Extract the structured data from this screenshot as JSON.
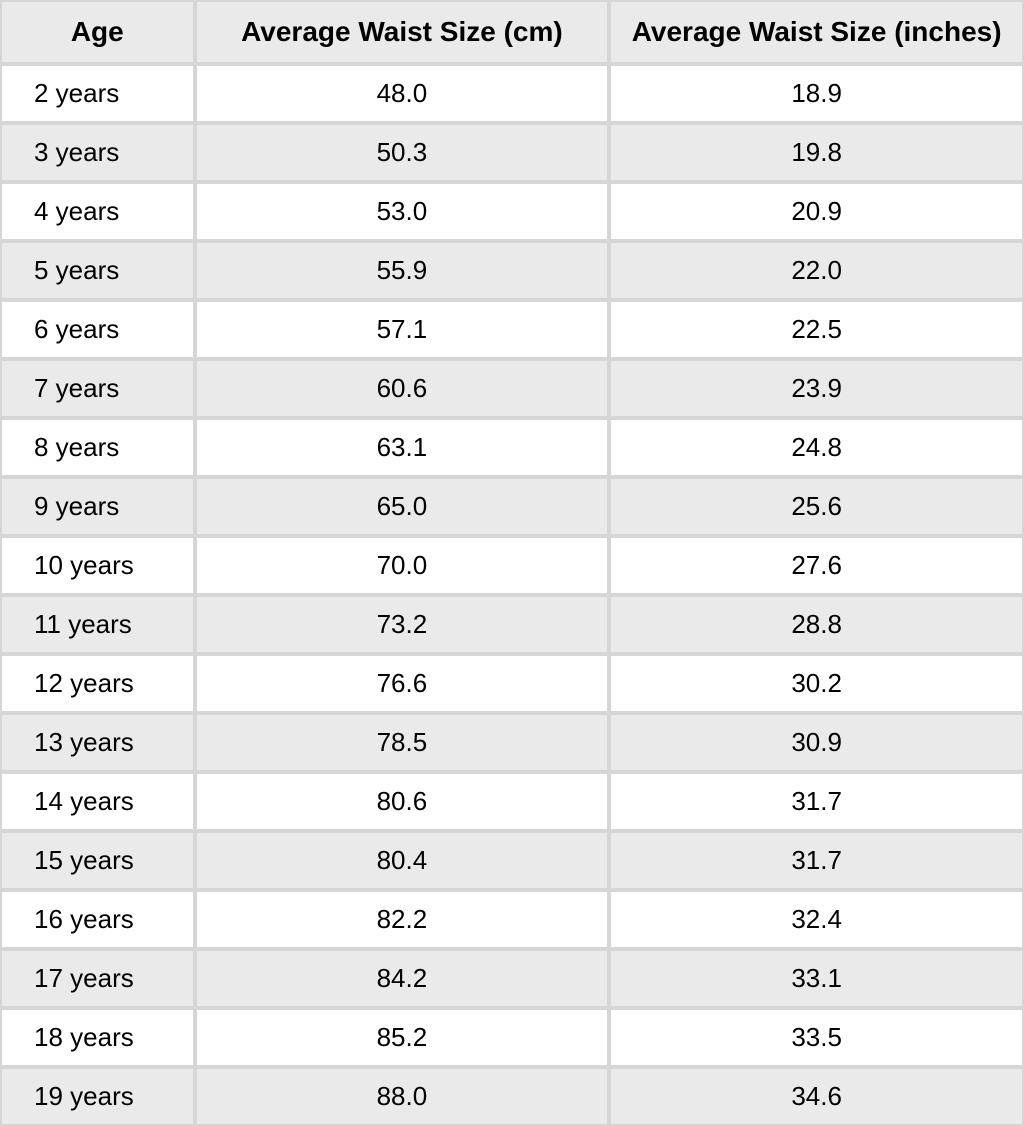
{
  "table": {
    "type": "table",
    "background_color": "#ffffff",
    "stripe_colors": [
      "#ffffff",
      "#eaeaea"
    ],
    "header_bg_color": "#eaeaea",
    "border_color": "#d6d6d6",
    "text_color": "#000000",
    "header_fontsize": 28,
    "cell_fontsize": 26,
    "columns": [
      {
        "key": "age",
        "label": "Age",
        "align": "left",
        "width_pct": 19
      },
      {
        "key": "cm",
        "label": "Average Waist Size (cm)",
        "align": "center",
        "width_pct": 40.5
      },
      {
        "key": "inches",
        "label": "Average Waist Size (inches)",
        "align": "center",
        "width_pct": 40.5
      }
    ],
    "rows": [
      {
        "age": "2 years",
        "cm": "48.0",
        "inches": "18.9"
      },
      {
        "age": "3 years",
        "cm": "50.3",
        "inches": "19.8"
      },
      {
        "age": "4 years",
        "cm": "53.0",
        "inches": "20.9"
      },
      {
        "age": "5 years",
        "cm": "55.9",
        "inches": "22.0"
      },
      {
        "age": "6 years",
        "cm": "57.1",
        "inches": "22.5"
      },
      {
        "age": "7 years",
        "cm": "60.6",
        "inches": "23.9"
      },
      {
        "age": "8 years",
        "cm": "63.1",
        "inches": "24.8"
      },
      {
        "age": "9 years",
        "cm": "65.0",
        "inches": "25.6"
      },
      {
        "age": "10 years",
        "cm": "70.0",
        "inches": "27.6"
      },
      {
        "age": "11 years",
        "cm": "73.2",
        "inches": "28.8"
      },
      {
        "age": "12 years",
        "cm": "76.6",
        "inches": "30.2"
      },
      {
        "age": "13 years",
        "cm": "78.5",
        "inches": "30.9"
      },
      {
        "age": "14 years",
        "cm": "80.6",
        "inches": "31.7"
      },
      {
        "age": "15 years",
        "cm": "80.4",
        "inches": "31.7"
      },
      {
        "age": "16 years",
        "cm": "82.2",
        "inches": "32.4"
      },
      {
        "age": "17 years",
        "cm": "84.2",
        "inches": "33.1"
      },
      {
        "age": "18 years",
        "cm": "85.2",
        "inches": "33.5"
      },
      {
        "age": "19 years",
        "cm": "88.0",
        "inches": "34.6"
      }
    ]
  }
}
